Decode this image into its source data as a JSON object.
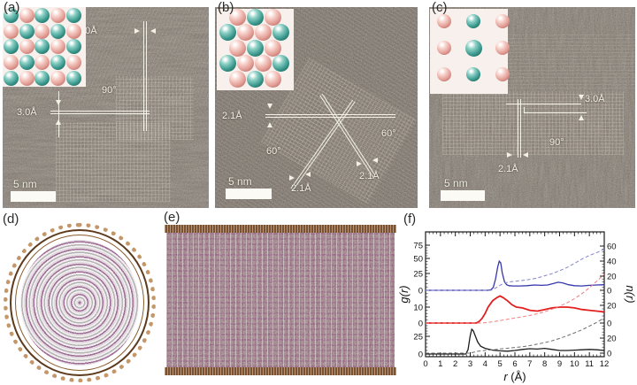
{
  "figure": {
    "colors": {
      "tem_background": "#6c645d",
      "teal_atom": "#3a988d",
      "pink_atom": "#e29c94",
      "nanotube_brown": "#7b512f",
      "filling_purple": "#7d3a72",
      "blue_curve": "#3636ab",
      "red_curve": "#e32020",
      "black_curve": "#1c1c1c"
    },
    "panels": {
      "a": {
        "label": "(a)",
        "scale_bar": "5 nm",
        "measure_top": "3.0Å",
        "measure_left": "3.0Å",
        "angle": "90°",
        "inset_rows": [
          [
            "t",
            "p",
            "t",
            "p",
            "t"
          ],
          [
            "p",
            "t",
            "p",
            "t",
            "p"
          ],
          [
            "t",
            "p",
            "t",
            "p",
            "t"
          ],
          [
            "p",
            "t",
            "p",
            "t",
            "p"
          ],
          [
            "t",
            "p",
            "t",
            "p",
            "t"
          ]
        ]
      },
      "b": {
        "label": "(b)",
        "scale_bar": "5 nm",
        "measure_left": "2.1Å",
        "measure_bottom_left": "2.1Å",
        "measure_bottom_right": "2.1Å",
        "angle_left": "60°",
        "angle_right": "60°",
        "inset_rows": [
          [
            "p",
            "t",
            "p"
          ],
          [
            "t",
            "p",
            "p",
            "t"
          ],
          [
            "p",
            "t",
            "p"
          ],
          [
            "t",
            "p",
            "p",
            "t"
          ],
          [
            "p",
            "t",
            "p"
          ]
        ]
      },
      "c": {
        "label": "(c)",
        "scale_bar": "5 nm",
        "measure_right": "3.0Å",
        "measure_bottom": "2.1Å",
        "angle": "90°",
        "inset_rows": [
          [
            "p",
            "t",
            "p"
          ],
          [
            "p",
            "T",
            "p"
          ],
          [
            "p",
            "t",
            "p"
          ]
        ]
      },
      "d": {
        "label": "(d)"
      },
      "e": {
        "label": "(e)"
      },
      "f": {
        "label": "(f)"
      }
    }
  },
  "chart_data": {
    "type": "line",
    "title": "",
    "xlabel": "r (Å)",
    "ylabel_left": "g(r)",
    "ylabel_right": "n(r)",
    "xlim": [
      0,
      12
    ],
    "x_tick_labels": [
      "0",
      "1",
      "2",
      "3",
      "4",
      "5",
      "6",
      "7",
      "8",
      "9",
      "10",
      "11",
      "12"
    ],
    "left_tick_labels": [
      "75",
      "50",
      "25",
      "0",
      "10",
      "0",
      "25",
      "0"
    ],
    "right_tick_labels": [
      "60",
      "40",
      "20",
      "0",
      "20",
      "0",
      "20",
      "0"
    ],
    "grid": false,
    "legend": "none",
    "layout_note": "three vertically stacked curve sets in one frame: blue (top), red (middle), black (bottom); solid curves = g(r) on left axis, dashed curves = n(r) on right axis",
    "sections": [
      {
        "name": "top",
        "color": "blue",
        "left_ticks": [
          0,
          25,
          50,
          75
        ],
        "right_ticks": [
          0,
          20,
          40,
          60
        ]
      },
      {
        "name": "middle",
        "color": "red",
        "left_ticks": [
          0,
          10
        ],
        "right_ticks": [
          0,
          20
        ]
      },
      {
        "name": "bottom",
        "color": "black",
        "left_ticks": [
          0,
          25
        ],
        "right_ticks": [
          0,
          20
        ]
      }
    ],
    "series": [
      {
        "name": "g(r)-blue-solid",
        "color": "#3636ab",
        "style": "solid",
        "section": "top",
        "axis": "left",
        "x": [
          0,
          4.2,
          4.4,
          4.55,
          4.7,
          4.85,
          4.95,
          5.05,
          5.15,
          5.3,
          5.45,
          5.6,
          5.9,
          6.3,
          6.8,
          7.3,
          7.8,
          8.2,
          8.6,
          8.9,
          9.2,
          9.6,
          10,
          10.5,
          11,
          11.5,
          12
        ],
        "y": [
          0,
          0,
          1,
          5,
          18,
          38,
          47,
          44,
          28,
          14,
          9,
          7.5,
          7,
          7,
          7.5,
          8.5,
          8,
          8.5,
          11,
          13,
          12,
          9,
          7.5,
          7,
          8,
          8.5,
          9
        ]
      },
      {
        "name": "n(r)-blue-dashed",
        "color": "#8585c9",
        "style": "dashed",
        "section": "top",
        "axis": "right",
        "x": [
          0,
          4.4,
          4.7,
          5,
          5.3,
          5.6,
          6,
          6.5,
          7,
          7.5,
          8,
          8.5,
          9,
          9.5,
          10,
          10.5,
          11,
          11.5,
          12
        ],
        "y": [
          0,
          0,
          3,
          7,
          10,
          11.5,
          12.5,
          13.5,
          15,
          17,
          20,
          23,
          27,
          31.5,
          37,
          43,
          48,
          52,
          57
        ]
      },
      {
        "name": "g(r)-red-solid",
        "color": "#e32020",
        "style": "solid",
        "section": "middle",
        "axis": "left",
        "x": [
          0,
          3.4,
          3.6,
          3.8,
          4,
          4.2,
          4.5,
          4.8,
          5,
          5.2,
          5.5,
          5.8,
          6.1,
          6.5,
          7,
          7.5,
          8,
          8.5,
          9,
          9.5,
          10,
          10.5,
          11,
          11.5,
          12
        ],
        "y": [
          0,
          0,
          1,
          3,
          6,
          10,
          14,
          16,
          17,
          16,
          14,
          11.5,
          10,
          9.5,
          8,
          7.5,
          8.5,
          9.5,
          10,
          10,
          9.5,
          8.5,
          8,
          7.5,
          7
        ]
      },
      {
        "name": "n(r)-red-dashed",
        "color": "#ef8080",
        "style": "dashed",
        "section": "middle",
        "axis": "right",
        "x": [
          0,
          3.8,
          4.5,
          5,
          5.5,
          6,
          6.5,
          7,
          7.5,
          8,
          8.5,
          9,
          9.5,
          10,
          10.5,
          11,
          11.5,
          12
        ],
        "y": [
          0,
          0,
          1.5,
          3,
          4.5,
          6,
          7.5,
          9,
          11,
          13.5,
          16.5,
          20,
          24,
          29,
          35,
          42,
          50,
          58
        ]
      },
      {
        "name": "g(r)-black-solid",
        "color": "#1c1c1c",
        "style": "solid",
        "section": "bottom",
        "axis": "left",
        "x": [
          0,
          2.7,
          2.85,
          3,
          3.1,
          3.2,
          3.35,
          3.5,
          3.7,
          4,
          4.5,
          5,
          5.5,
          6,
          6.5,
          7,
          7.5,
          8,
          8.5,
          9,
          9.5,
          10,
          10.5,
          11,
          11.5,
          12
        ],
        "y": [
          0,
          0,
          6,
          26,
          35,
          33,
          25,
          17,
          11,
          8,
          5.5,
          4.5,
          4,
          5,
          6.5,
          7.5,
          7,
          8,
          6.5,
          5,
          5,
          5.5,
          6,
          6.5,
          6,
          5
        ]
      },
      {
        "name": "n(r)-black-dashed",
        "color": "#6e6e6e",
        "style": "dashed",
        "section": "bottom",
        "axis": "right",
        "x": [
          0,
          3,
          3.5,
          4,
          4.5,
          5,
          5.5,
          6,
          6.5,
          7,
          7.5,
          8,
          8.5,
          9,
          9.5,
          10,
          10.5,
          11,
          11.5,
          12
        ],
        "y": [
          0,
          0,
          2.5,
          3.5,
          4.5,
          5.5,
          6.5,
          7.5,
          8.5,
          10,
          12,
          14,
          16.5,
          19.5,
          23,
          27,
          31,
          36,
          41,
          47
        ]
      }
    ]
  }
}
